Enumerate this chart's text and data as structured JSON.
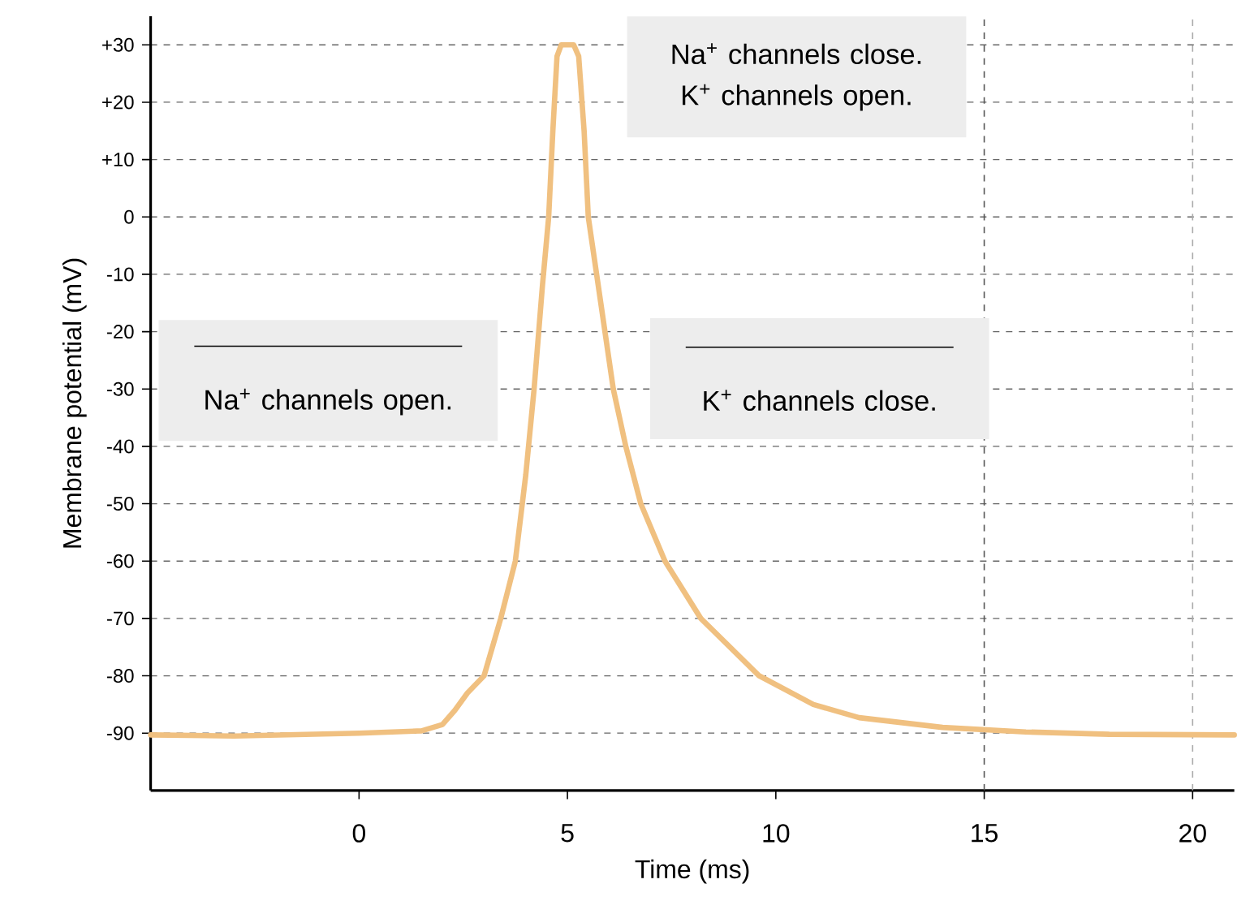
{
  "chart_data": {
    "type": "line",
    "xlabel": "Time (ms)",
    "ylabel": "Membrane potential (mV)",
    "xlim": [
      -5,
      21
    ],
    "ylim": [
      -100,
      35
    ],
    "xticks": [
      0,
      5,
      10,
      15,
      20
    ],
    "yticks": [
      {
        "value": 30,
        "label": "+30"
      },
      {
        "value": 20,
        "label": "+20"
      },
      {
        "value": 10,
        "label": "+10"
      },
      0,
      -10,
      -20,
      -30,
      -40,
      -50,
      -60,
      -70,
      -80,
      -90
    ],
    "grid": "y",
    "marker": "none",
    "line_style": "solid",
    "ref_lines": [
      {
        "axis": "x",
        "value": 15,
        "color": "#555555",
        "line_style": "dashed"
      },
      {
        "axis": "x",
        "value": 20,
        "color": "#aaaaaa",
        "line_style": "dashed"
      }
    ],
    "annotations": [
      "Na$^{+}$ channels close. K$^{+}$ channels open.",
      "Na$^{+}$ channels open.",
      "K$^{+}$ channels close."
    ],
    "series": [
      {
        "color": "#f0c080",
        "x": [
          -5,
          -3,
          0,
          1.5,
          2,
          2.3,
          2.6,
          3,
          3.4,
          3.75,
          4.0,
          4.2,
          4.4,
          4.55,
          4.65,
          4.75,
          4.85,
          5.15,
          5.27,
          5.4,
          5.5,
          5.8,
          6.1,
          6.4,
          6.76,
          7.34,
          8.2,
          9.6,
          10.9,
          12,
          14,
          16,
          18,
          21
        ],
        "values": [
          -90.3,
          -90.5,
          -90,
          -89.6,
          -88.5,
          -86,
          -83,
          -80,
          -70,
          -60,
          -45,
          -30,
          -12,
          0,
          15,
          28,
          30,
          30,
          28,
          15,
          0,
          -15,
          -30,
          -40,
          -50,
          -60,
          -70,
          -80,
          -85,
          -87.3,
          -89,
          -89.8,
          -90.2,
          -90.3
        ]
      }
    ]
  }
}
